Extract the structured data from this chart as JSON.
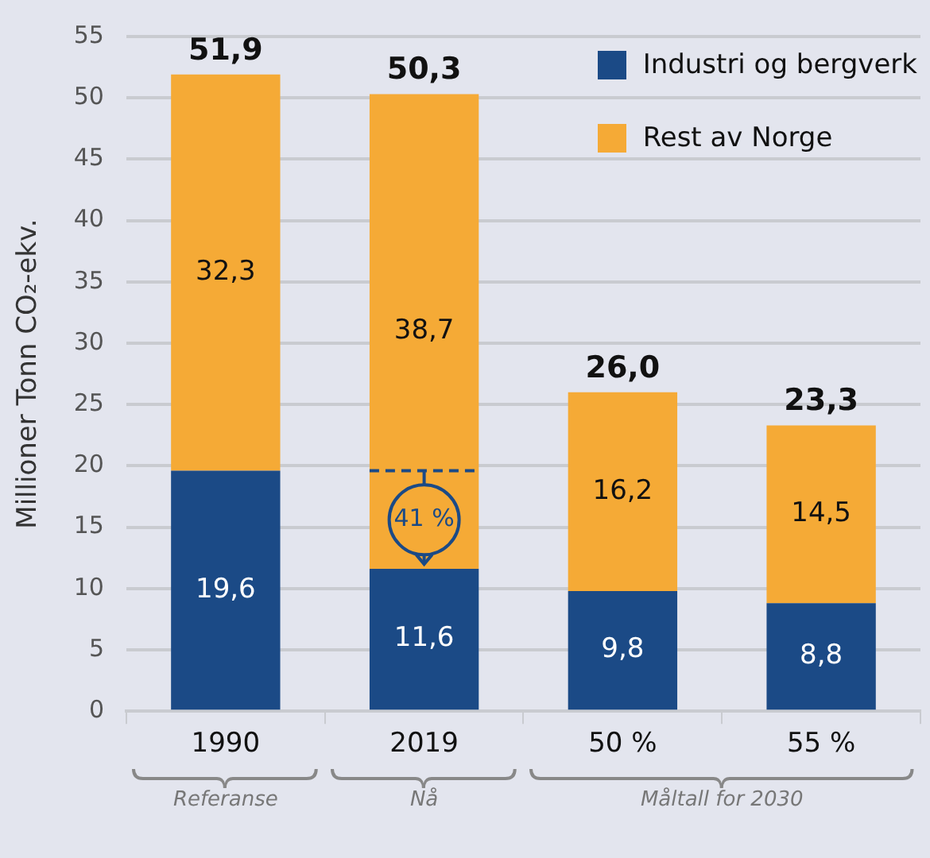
{
  "chart_data": {
    "type": "bar",
    "stacked": true,
    "ylabel": "Millioner Tonn CO₂-ekv.",
    "categories": [
      "1990",
      "2019",
      "50 %",
      "55 %"
    ],
    "series": [
      {
        "name": "Industri og bergverk",
        "color": "#1b4a86",
        "values": [
          19.6,
          11.6,
          9.8,
          8.8
        ],
        "value_labels": [
          "19,6",
          "11,6",
          "9,8",
          "8,8"
        ]
      },
      {
        "name": "Rest av Norge",
        "color": "#f5aa36",
        "values": [
          32.3,
          38.7,
          16.2,
          14.5
        ],
        "value_labels": [
          "32,3",
          "38,7",
          "16,2",
          "14,5"
        ]
      }
    ],
    "totals": [
      "51,9",
      "50,3",
      "26,0",
      "23,3"
    ],
    "ylim": [
      0,
      55
    ],
    "yticks": [
      0,
      5,
      10,
      15,
      20,
      25,
      30,
      35,
      40,
      45,
      50,
      55
    ],
    "grid": "y",
    "legend": "top right",
    "annotations": [
      {
        "text": "41 %",
        "x": "2019",
        "y": 15.6
      },
      "Referanse",
      "Nå",
      "Måltall for 2030"
    ]
  }
}
